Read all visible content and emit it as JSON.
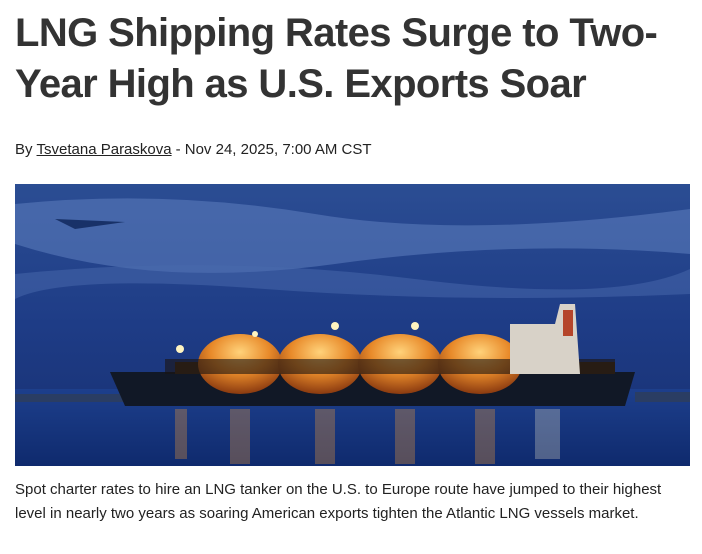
{
  "header": {
    "title": "LNG Shipping Rates Surge to Two-Year High as U.S. Exports Soar"
  },
  "byline": {
    "prefix": "By",
    "author": "Tsvetana Paraskova",
    "dateline": "- Nov 24, 2025, 7:00 AM CST"
  },
  "body": {
    "lead": "Spot charter rates to hire an LNG tanker on the U.S. to Europe route have jumped to their highest level in nearly two years as soaring American exports tighten the Atlantic LNG vessels market."
  }
}
